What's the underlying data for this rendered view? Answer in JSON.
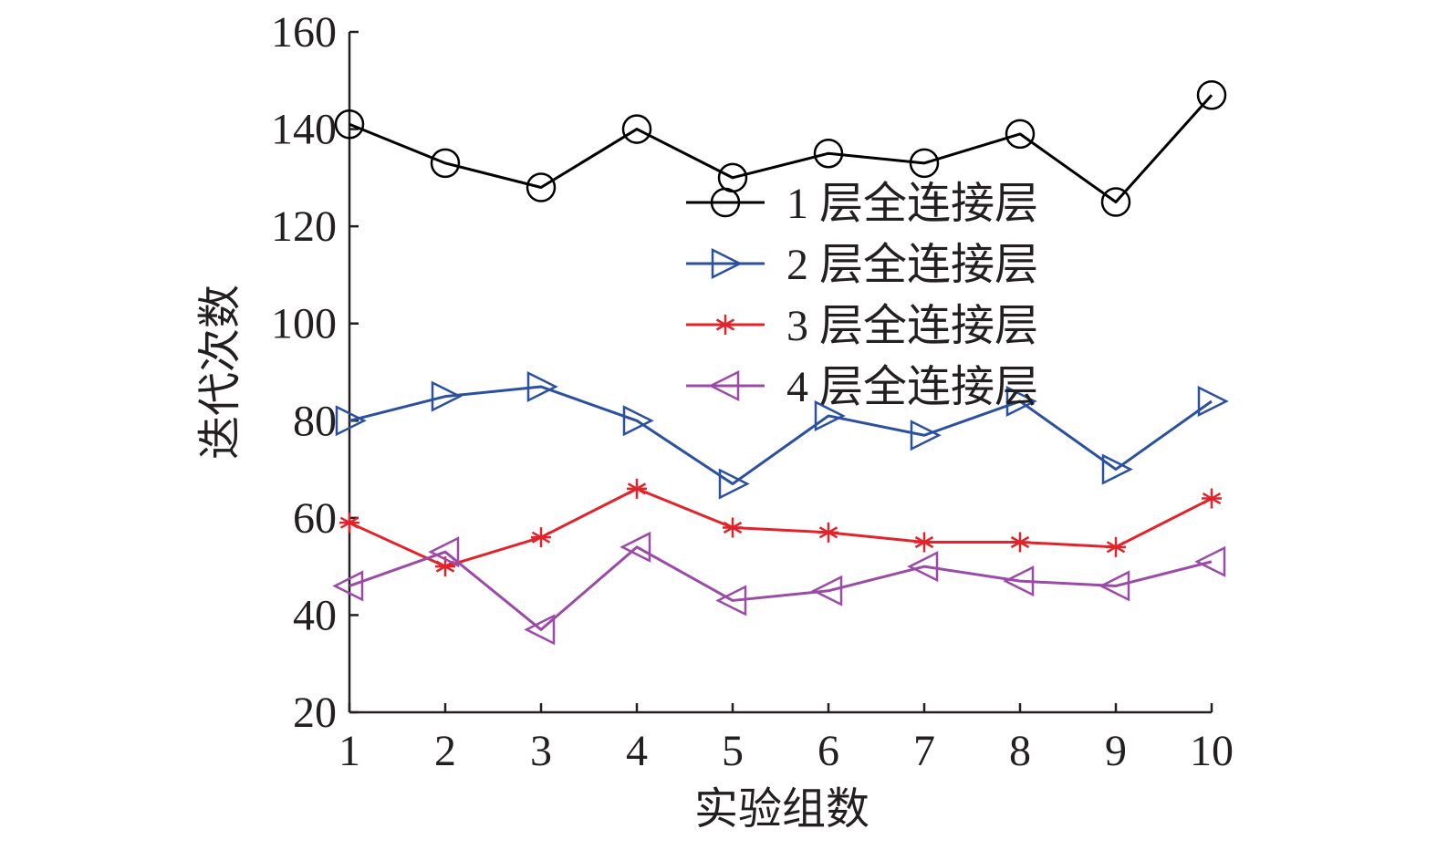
{
  "chart_data": {
    "type": "line",
    "title": "",
    "xlabel": "实验组数",
    "ylabel": "迭代次数",
    "x": [
      1,
      2,
      3,
      4,
      5,
      6,
      7,
      8,
      9,
      10
    ],
    "xticks": [
      "1",
      "2",
      "3",
      "4",
      "5",
      "6",
      "7",
      "8",
      "9",
      "10"
    ],
    "yticks": [
      "20",
      "40",
      "60",
      "80",
      "100",
      "120",
      "140",
      "160"
    ],
    "xlim": [
      1,
      10
    ],
    "ylim": [
      20,
      160
    ],
    "grid": false,
    "legend_position": "upper-right",
    "series": [
      {
        "name": "1 层全连接层",
        "color": "#000000",
        "marker": "circle",
        "values": [
          141,
          133,
          128,
          140,
          130,
          135,
          133,
          139,
          125,
          147
        ]
      },
      {
        "name": "2 层全连接层",
        "color": "#2b50a0",
        "marker": "triangle-right",
        "values": [
          80,
          85,
          87,
          80,
          67,
          81,
          77,
          84,
          70,
          84
        ]
      },
      {
        "name": "3 层全连接层",
        "color": "#e1242b",
        "marker": "asterisk",
        "values": [
          59,
          50,
          56,
          66,
          58,
          57,
          55,
          55,
          54,
          64
        ]
      },
      {
        "name": "4 层全连接层",
        "color": "#9b4aa8",
        "marker": "triangle-left",
        "values": [
          46,
          53,
          37,
          54,
          43,
          45,
          50,
          47,
          46,
          51
        ]
      }
    ]
  }
}
